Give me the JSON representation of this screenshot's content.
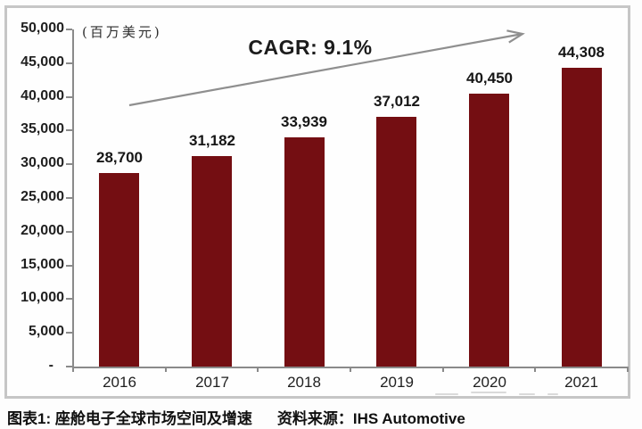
{
  "chart_data": {
    "type": "bar",
    "title": "座舱电子全球市场空间及增速",
    "unit_label": "(百万美元)",
    "annotation": "CAGR: 9.1%",
    "categories": [
      "2016",
      "2017",
      "2018",
      "2019",
      "2020",
      "2021"
    ],
    "values": [
      28700,
      31182,
      33939,
      37012,
      40450,
      44308
    ],
    "value_labels": [
      "28,700",
      "31,182",
      "33,939",
      "37,012",
      "40,450",
      "44,308"
    ],
    "y_ticks": [
      "50,000",
      "45,000",
      "40,000",
      "35,000",
      "30,000",
      "25,000",
      "20,000",
      "15,000",
      "10,000",
      "5,000",
      "-"
    ],
    "ylim": [
      0,
      50000
    ],
    "xlabel": "",
    "ylabel": "",
    "grid": false,
    "legend": false,
    "bar_color": "#740E12",
    "arrow_color": "#8f8f8f",
    "axis_color": "#8a8a8a",
    "text_color": "#1f1f1f",
    "frame_border_color": "#c6c6c6"
  },
  "caption": {
    "figure_label": "图表1: 座舱电子全球市场空间及增速",
    "source": "资料来源：IHS Automotive"
  }
}
